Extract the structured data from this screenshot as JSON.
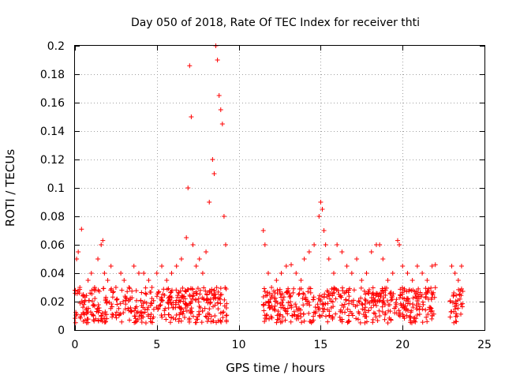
{
  "chart_data": {
    "type": "scatter",
    "title": "Day 050 of 2018, Rate Of TEC Index for receiver thti",
    "xlabel": "GPS time / hours",
    "ylabel": "ROTI / TECUs",
    "xlim": [
      0,
      25
    ],
    "ylim": [
      0,
      0.2
    ],
    "xticks": [
      0,
      5,
      10,
      15,
      20,
      25
    ],
    "xtick_labels": [
      "0",
      "5",
      "10",
      "15",
      "20",
      "25"
    ],
    "yticks": [
      0,
      0.02,
      0.04,
      0.06,
      0.08,
      0.1,
      0.12,
      0.14,
      0.16,
      0.18,
      0.2
    ],
    "ytick_labels": [
      "0",
      "0.02",
      "0.04",
      "0.06",
      "0.08",
      "0.1",
      "0.12",
      "0.14",
      "0.16",
      "0.18",
      "0.2"
    ],
    "grid": true,
    "marker": "+",
    "color": "#ff0000",
    "series": [
      {
        "name": "ROTI",
        "x": [
          0.1,
          0.2,
          0.3,
          0.4,
          0.5,
          0.6,
          0.8,
          1.0,
          1.2,
          1.4,
          1.6,
          1.7,
          1.8,
          2.0,
          2.2,
          2.5,
          2.8,
          3.0,
          3.3,
          3.6,
          3.9,
          4.2,
          4.5,
          4.7,
          5.0,
          5.3,
          5.6,
          5.9,
          6.2,
          6.5,
          6.8,
          6.9,
          7.0,
          7.1,
          7.2,
          7.4,
          7.6,
          7.8,
          8.0,
          8.2,
          8.4,
          8.5,
          8.6,
          8.7,
          8.8,
          8.9,
          9.0,
          9.1,
          9.2,
          11.5,
          11.6,
          11.8,
          12.0,
          12.3,
          12.6,
          12.9,
          13.2,
          13.5,
          13.8,
          14.0,
          14.3,
          14.6,
          14.9,
          15.0,
          15.1,
          15.2,
          15.3,
          15.5,
          15.8,
          16.0,
          16.3,
          16.6,
          16.9,
          17.2,
          17.5,
          17.8,
          18.1,
          18.4,
          18.6,
          18.8,
          19.1,
          19.4,
          19.7,
          19.8,
          20.0,
          20.3,
          20.6,
          20.9,
          21.2,
          21.5,
          21.8,
          22.0,
          23.0,
          23.2,
          23.4,
          23.6
        ],
        "y": [
          0.05,
          0.055,
          0.03,
          0.071,
          0.025,
          0.02,
          0.035,
          0.04,
          0.03,
          0.05,
          0.06,
          0.063,
          0.04,
          0.035,
          0.045,
          0.03,
          0.04,
          0.035,
          0.03,
          0.045,
          0.04,
          0.04,
          0.035,
          0.03,
          0.04,
          0.045,
          0.035,
          0.04,
          0.045,
          0.05,
          0.065,
          0.1,
          0.186,
          0.15,
          0.06,
          0.045,
          0.05,
          0.04,
          0.055,
          0.09,
          0.12,
          0.11,
          0.2,
          0.19,
          0.165,
          0.155,
          0.145,
          0.08,
          0.06,
          0.07,
          0.06,
          0.04,
          0.03,
          0.035,
          0.04,
          0.045,
          0.046,
          0.04,
          0.035,
          0.05,
          0.055,
          0.06,
          0.08,
          0.09,
          0.085,
          0.07,
          0.06,
          0.05,
          0.04,
          0.06,
          0.055,
          0.045,
          0.04,
          0.05,
          0.035,
          0.04,
          0.055,
          0.06,
          0.06,
          0.05,
          0.035,
          0.04,
          0.063,
          0.06,
          0.045,
          0.04,
          0.035,
          0.045,
          0.04,
          0.035,
          0.045,
          0.046,
          0.045,
          0.04,
          0.035,
          0.045
        ]
      }
    ],
    "band": {
      "segments": [
        [
          0.0,
          9.3
        ],
        [
          11.5,
          22.0
        ],
        [
          22.9,
          23.7
        ]
      ],
      "ymin": 0.005,
      "ymax": 0.03
    }
  }
}
